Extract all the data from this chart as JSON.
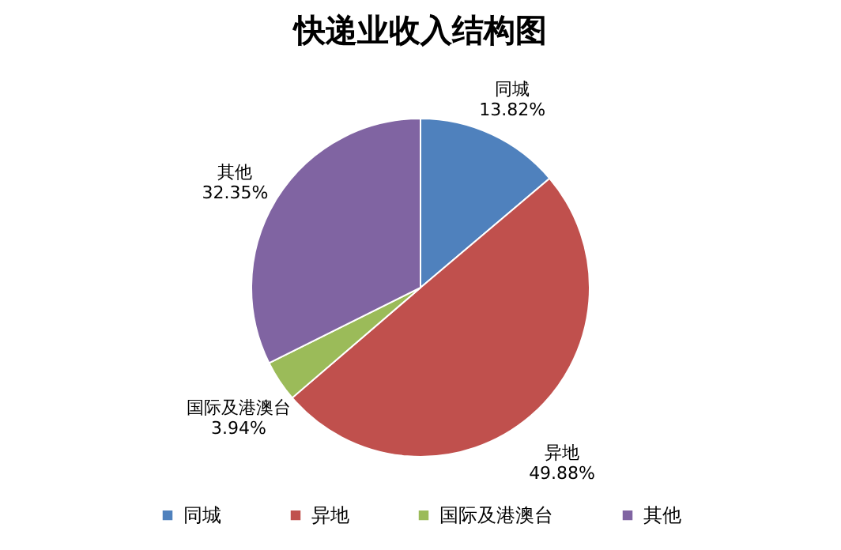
{
  "chart_data": {
    "type": "pie",
    "title": "快递业收入结构图",
    "categories": [
      "同城",
      "异地",
      "国际及港澳台",
      "其他"
    ],
    "values": [
      13.82,
      49.88,
      3.94,
      32.35
    ],
    "colors": [
      "#4f81bd",
      "#c0504d",
      "#9bbb59",
      "#8064a2"
    ],
    "value_labels": [
      "13.82%",
      "49.88%",
      "3.94%",
      "32.35%"
    ],
    "legend": "bottom"
  }
}
